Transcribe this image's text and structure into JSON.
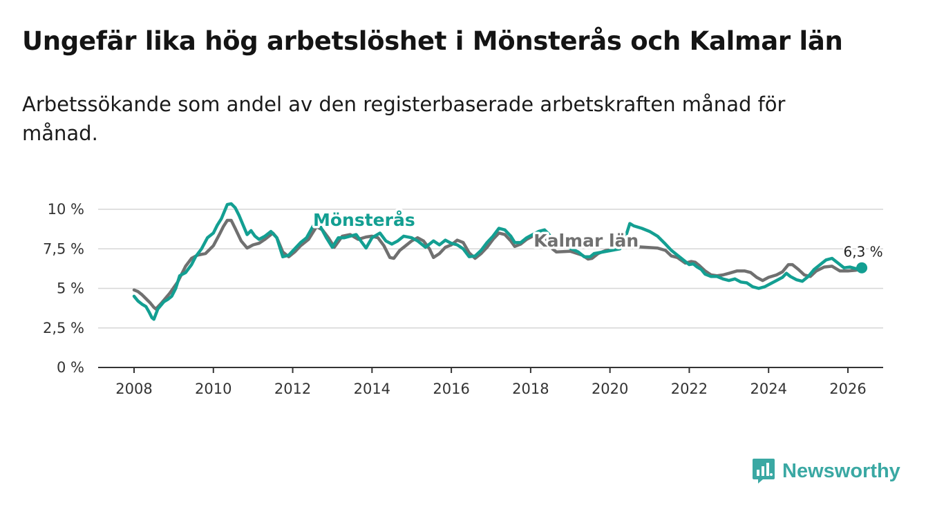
{
  "title": "Ungefär lika hög arbetslöshet i Mönsterås och Kalmar län",
  "subtitle": "Arbetssökande som andel av den registerbaserade arbetskraften månad för månad.",
  "brand": {
    "name": "Newsworthy",
    "icon": "bar-chart-icon",
    "color": "#3aa8a3"
  },
  "chart_data": {
    "type": "line",
    "title": "Ungefär lika hög arbetslöshet i Mönsterås och Kalmar län",
    "subtitle": "Arbetssökande som andel av den registerbaserade arbetskraften månad för månad.",
    "xlabel": "",
    "ylabel": "",
    "xlim": [
      2007.8,
      2026.9
    ],
    "ylim": [
      0,
      10
    ],
    "grid": true,
    "y_ticks": [
      0,
      2.5,
      5,
      7.5,
      10
    ],
    "y_tick_labels": [
      "0 %",
      "2,5 %",
      "5 %",
      "7,5 %",
      "10 %"
    ],
    "x_ticks": [
      2008,
      2010,
      2012,
      2014,
      2016,
      2018,
      2020,
      2022,
      2024,
      2026
    ],
    "x_tick_labels": [
      "2008",
      "2010",
      "2012",
      "2014",
      "2016",
      "2018",
      "2020",
      "2022",
      "2024",
      "2026"
    ],
    "end_label": "6,3 %",
    "series": [
      {
        "name": "Kalmar län",
        "color": "#707070",
        "points": [
          [
            2008.0,
            4.9
          ],
          [
            2008.1,
            4.8
          ],
          [
            2008.2,
            4.6
          ],
          [
            2008.3,
            4.35
          ],
          [
            2008.4,
            4.1
          ],
          [
            2008.5,
            3.8
          ],
          [
            2008.55,
            3.7
          ],
          [
            2008.7,
            4.1
          ],
          [
            2008.9,
            4.7
          ],
          [
            2009.1,
            5.4
          ],
          [
            2009.3,
            6.4
          ],
          [
            2009.45,
            6.9
          ],
          [
            2009.6,
            7.1
          ],
          [
            2009.8,
            7.2
          ],
          [
            2010.0,
            7.7
          ],
          [
            2010.15,
            8.4
          ],
          [
            2010.25,
            8.9
          ],
          [
            2010.35,
            9.3
          ],
          [
            2010.45,
            9.3
          ],
          [
            2010.55,
            8.8
          ],
          [
            2010.7,
            8.0
          ],
          [
            2010.85,
            7.55
          ],
          [
            2011.0,
            7.75
          ],
          [
            2011.15,
            7.85
          ],
          [
            2011.3,
            8.1
          ],
          [
            2011.5,
            8.5
          ],
          [
            2011.6,
            8.2
          ],
          [
            2011.75,
            7.3
          ],
          [
            2011.9,
            7.0
          ],
          [
            2012.05,
            7.3
          ],
          [
            2012.2,
            7.7
          ],
          [
            2012.4,
            8.1
          ],
          [
            2012.6,
            8.9
          ],
          [
            2012.75,
            8.7
          ],
          [
            2012.9,
            8.2
          ],
          [
            2013.05,
            7.6
          ],
          [
            2013.25,
            8.3
          ],
          [
            2013.45,
            8.4
          ],
          [
            2013.65,
            8.1
          ],
          [
            2013.85,
            8.25
          ],
          [
            2014.0,
            8.3
          ],
          [
            2014.15,
            8.2
          ],
          [
            2014.3,
            7.7
          ],
          [
            2014.45,
            6.95
          ],
          [
            2014.55,
            6.9
          ],
          [
            2014.7,
            7.4
          ],
          [
            2014.85,
            7.7
          ],
          [
            2015.0,
            8.0
          ],
          [
            2015.15,
            8.2
          ],
          [
            2015.3,
            8.0
          ],
          [
            2015.45,
            7.5
          ],
          [
            2015.55,
            6.95
          ],
          [
            2015.7,
            7.2
          ],
          [
            2015.85,
            7.6
          ],
          [
            2016.0,
            7.75
          ],
          [
            2016.15,
            8.05
          ],
          [
            2016.3,
            7.9
          ],
          [
            2016.45,
            7.25
          ],
          [
            2016.6,
            6.9
          ],
          [
            2016.75,
            7.2
          ],
          [
            2016.9,
            7.6
          ],
          [
            2017.05,
            8.1
          ],
          [
            2017.2,
            8.5
          ],
          [
            2017.35,
            8.4
          ],
          [
            2017.5,
            8.0
          ],
          [
            2017.6,
            7.65
          ],
          [
            2017.75,
            7.8
          ],
          [
            2017.9,
            8.1
          ],
          [
            2018.05,
            8.3
          ],
          [
            2018.2,
            8.45
          ],
          [
            2018.35,
            8.3
          ],
          [
            2018.45,
            7.9
          ],
          [
            2018.55,
            7.5
          ],
          [
            2018.65,
            7.3
          ],
          [
            2019.0,
            7.35
          ],
          [
            2019.3,
            7.1
          ],
          [
            2019.45,
            6.85
          ],
          [
            2019.55,
            6.9
          ],
          [
            2019.7,
            7.2
          ],
          [
            2019.9,
            7.4
          ],
          [
            2020.1,
            7.45
          ],
          [
            2020.3,
            7.7
          ],
          [
            2021.2,
            7.55
          ],
          [
            2021.4,
            7.4
          ],
          [
            2021.55,
            7.05
          ],
          [
            2021.7,
            6.95
          ],
          [
            2021.9,
            6.6
          ],
          [
            2022.05,
            6.7
          ],
          [
            2022.15,
            6.65
          ],
          [
            2022.25,
            6.45
          ],
          [
            2022.4,
            6.1
          ],
          [
            2022.55,
            5.85
          ],
          [
            2022.7,
            5.8
          ],
          [
            2022.85,
            5.85
          ],
          [
            2023.0,
            5.95
          ],
          [
            2023.2,
            6.1
          ],
          [
            2023.4,
            6.1
          ],
          [
            2023.55,
            6.0
          ],
          [
            2023.7,
            5.7
          ],
          [
            2023.85,
            5.5
          ],
          [
            2024.0,
            5.7
          ],
          [
            2024.2,
            5.85
          ],
          [
            2024.35,
            6.05
          ],
          [
            2024.5,
            6.5
          ],
          [
            2024.6,
            6.5
          ],
          [
            2024.75,
            6.2
          ],
          [
            2024.9,
            5.85
          ],
          [
            2025.05,
            5.75
          ],
          [
            2025.2,
            6.1
          ],
          [
            2025.4,
            6.35
          ],
          [
            2025.6,
            6.4
          ],
          [
            2025.8,
            6.1
          ],
          [
            2026.0,
            6.1
          ],
          [
            2026.2,
            6.15
          ],
          [
            2026.35,
            6.2
          ]
        ]
      },
      {
        "name": "Mönsterås",
        "color": "#139f92",
        "points": [
          [
            2008.0,
            4.5
          ],
          [
            2008.1,
            4.2
          ],
          [
            2008.2,
            4.0
          ],
          [
            2008.3,
            3.85
          ],
          [
            2008.38,
            3.5
          ],
          [
            2008.45,
            3.15
          ],
          [
            2008.5,
            3.05
          ],
          [
            2008.6,
            3.7
          ],
          [
            2008.75,
            4.15
          ],
          [
            2008.85,
            4.3
          ],
          [
            2008.95,
            4.5
          ],
          [
            2009.05,
            5.0
          ],
          [
            2009.15,
            5.8
          ],
          [
            2009.3,
            6.0
          ],
          [
            2009.45,
            6.5
          ],
          [
            2009.55,
            7.0
          ],
          [
            2009.7,
            7.5
          ],
          [
            2009.85,
            8.2
          ],
          [
            2010.0,
            8.5
          ],
          [
            2010.1,
            9.0
          ],
          [
            2010.2,
            9.4
          ],
          [
            2010.35,
            10.3
          ],
          [
            2010.45,
            10.35
          ],
          [
            2010.55,
            10.1
          ],
          [
            2010.65,
            9.6
          ],
          [
            2010.75,
            9.0
          ],
          [
            2010.85,
            8.4
          ],
          [
            2010.95,
            8.65
          ],
          [
            2011.05,
            8.3
          ],
          [
            2011.15,
            8.1
          ],
          [
            2011.3,
            8.3
          ],
          [
            2011.45,
            8.6
          ],
          [
            2011.6,
            8.2
          ],
          [
            2011.75,
            7.0
          ],
          [
            2011.9,
            7.1
          ],
          [
            2012.05,
            7.5
          ],
          [
            2012.2,
            7.9
          ],
          [
            2012.35,
            8.2
          ],
          [
            2012.55,
            9.1
          ],
          [
            2012.7,
            8.9
          ],
          [
            2012.85,
            8.2
          ],
          [
            2013.0,
            7.6
          ],
          [
            2013.15,
            8.2
          ],
          [
            2013.3,
            8.2
          ],
          [
            2013.6,
            8.4
          ],
          [
            2013.85,
            7.55
          ],
          [
            2014.0,
            8.2
          ],
          [
            2014.2,
            8.5
          ],
          [
            2014.35,
            8.0
          ],
          [
            2014.5,
            7.8
          ],
          [
            2014.65,
            8.0
          ],
          [
            2014.8,
            8.3
          ],
          [
            2015.0,
            8.2
          ],
          [
            2015.15,
            8.0
          ],
          [
            2015.35,
            7.6
          ],
          [
            2015.55,
            8.0
          ],
          [
            2015.7,
            7.75
          ],
          [
            2015.85,
            8.05
          ],
          [
            2016.0,
            7.85
          ],
          [
            2016.15,
            7.75
          ],
          [
            2016.3,
            7.5
          ],
          [
            2016.45,
            7.0
          ],
          [
            2016.6,
            7.05
          ],
          [
            2016.75,
            7.4
          ],
          [
            2016.9,
            7.9
          ],
          [
            2017.05,
            8.3
          ],
          [
            2017.2,
            8.8
          ],
          [
            2017.35,
            8.7
          ],
          [
            2017.5,
            8.3
          ],
          [
            2017.6,
            7.9
          ],
          [
            2017.75,
            7.9
          ],
          [
            2017.9,
            8.2
          ],
          [
            2018.05,
            8.4
          ],
          [
            2018.2,
            8.6
          ],
          [
            2018.35,
            8.7
          ],
          [
            2018.45,
            8.45
          ],
          [
            2018.55,
            8.1
          ],
          [
            2018.65,
            7.95
          ],
          [
            2019.2,
            7.3
          ],
          [
            2019.35,
            7.0
          ],
          [
            2019.5,
            7.0
          ],
          [
            2019.6,
            7.2
          ],
          [
            2020.25,
            7.5
          ],
          [
            2020.4,
            8.3
          ],
          [
            2020.5,
            9.1
          ],
          [
            2020.6,
            8.95
          ],
          [
            2020.8,
            8.8
          ],
          [
            2021.0,
            8.6
          ],
          [
            2021.2,
            8.3
          ],
          [
            2021.4,
            7.8
          ],
          [
            2021.55,
            7.4
          ],
          [
            2021.7,
            7.1
          ],
          [
            2021.85,
            6.8
          ],
          [
            2022.0,
            6.5
          ],
          [
            2022.1,
            6.55
          ],
          [
            2022.2,
            6.35
          ],
          [
            2022.3,
            6.2
          ],
          [
            2022.4,
            5.9
          ],
          [
            2022.55,
            5.75
          ],
          [
            2022.7,
            5.75
          ],
          [
            2022.85,
            5.6
          ],
          [
            2023.0,
            5.5
          ],
          [
            2023.15,
            5.6
          ],
          [
            2023.3,
            5.4
          ],
          [
            2023.45,
            5.35
          ],
          [
            2023.6,
            5.1
          ],
          [
            2023.75,
            5.0
          ],
          [
            2023.9,
            5.1
          ],
          [
            2024.05,
            5.3
          ],
          [
            2024.2,
            5.5
          ],
          [
            2024.35,
            5.7
          ],
          [
            2024.45,
            5.95
          ],
          [
            2024.55,
            5.75
          ],
          [
            2024.7,
            5.55
          ],
          [
            2024.85,
            5.45
          ],
          [
            2025.0,
            5.75
          ],
          [
            2025.15,
            6.2
          ],
          [
            2025.3,
            6.5
          ],
          [
            2025.45,
            6.8
          ],
          [
            2025.6,
            6.9
          ],
          [
            2025.75,
            6.6
          ],
          [
            2025.9,
            6.3
          ],
          [
            2026.05,
            6.35
          ],
          [
            2026.2,
            6.25
          ],
          [
            2026.35,
            6.3
          ]
        ]
      }
    ],
    "series_labels": [
      {
        "series": "Mönsterås",
        "x": 2013.8,
        "y": 8.95
      },
      {
        "series": "Kalmar län",
        "x": 2019.4,
        "y": 7.65
      }
    ]
  }
}
